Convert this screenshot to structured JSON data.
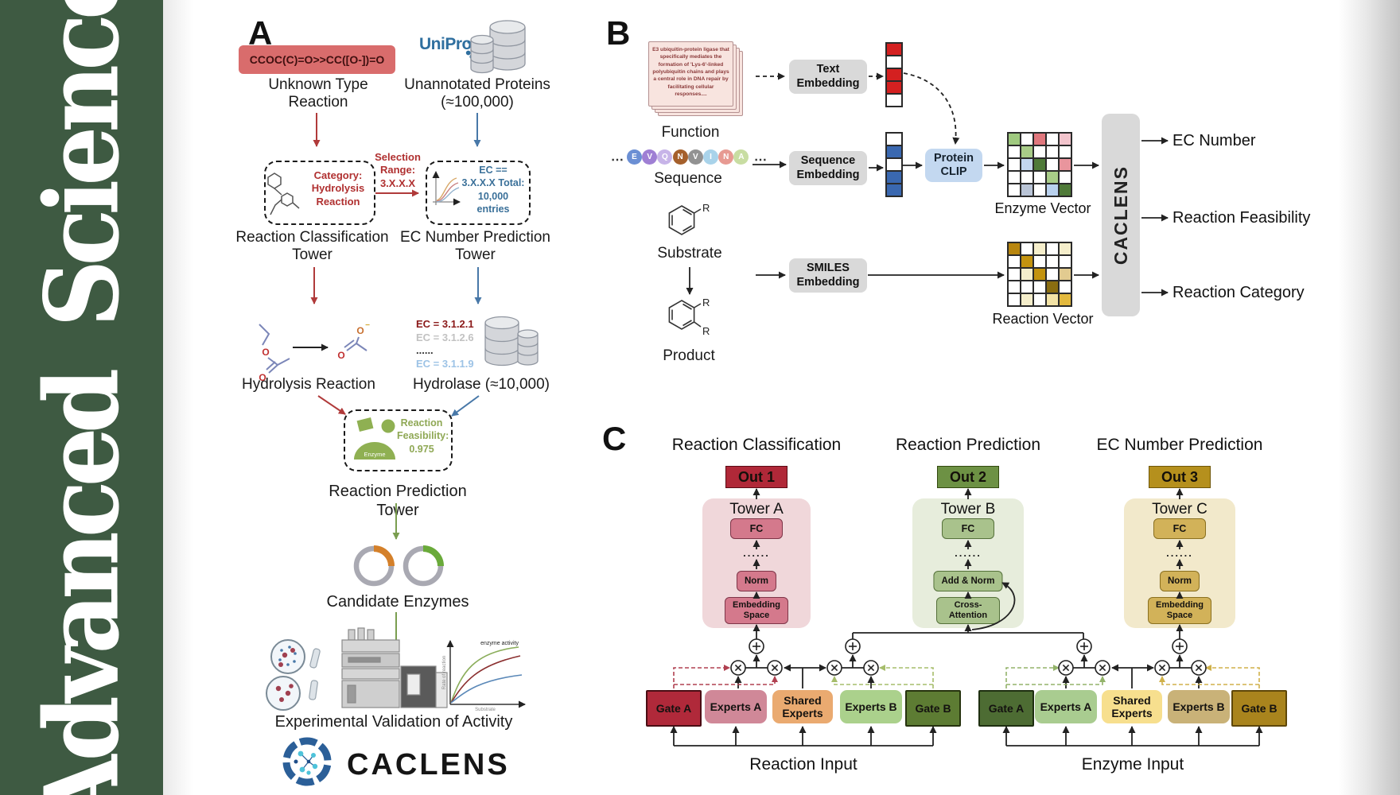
{
  "sidebar": {
    "journal": "Advanced Science",
    "bg_color": "#3e5a42"
  },
  "panel_a": {
    "label": "A",
    "smiles": "CCOC(C)=O>>CC([O-])=O",
    "unknown_reaction": "Unknown Type Reaction",
    "uniprot": "UniProt",
    "unannotated": "Unannotated Proteins (≈100,000)",
    "category": "Category: Hydrolysis Reaction",
    "selection": "Selection Range: 3.X.X.X",
    "ec_filter": "EC == 3.X.X.X Total: 10,000 entries",
    "tower_classification": "Reaction Classification Tower",
    "tower_ec": "EC Number Prediction Tower",
    "hydrolysis": "Hydrolysis Reaction",
    "ec_list": [
      {
        "text": "EC = 3.1.2.1",
        "color": "#8b1a1a"
      },
      {
        "text": "EC = 3.1.2.6",
        "color": "#c2c2c2"
      },
      {
        "text": "......",
        "color": "#333333"
      },
      {
        "text": "EC = 3.1.1.9",
        "color": "#9dc3e6"
      }
    ],
    "hydrolase": "Hydrolase (≈10,000)",
    "enzyme_badge": "Enzyme",
    "feasibility": "Reaction Feasibility: 0.975",
    "tower_prediction": "Reaction Prediction Tower",
    "candidates": "Candidate Enzymes",
    "validation": "Experimental Validation of Activity",
    "activity_chart": {
      "ylabel": "Rate of reaction",
      "xlabel": "Substrate",
      "annotation": "enzyme activity"
    },
    "atoms": {
      "o": "O",
      "minus": "−"
    },
    "brand": "CACLENS"
  },
  "panel_b": {
    "label": "B",
    "function_text": "E3 ubiquitin-protein ligase that specifically mediates the formation of 'Lys-6'-linked polyubiquitin chains and plays a central role in DNA repair by facilitating cellular responses....",
    "function": "Function",
    "ellipsis": "⋯",
    "sequence_residues": [
      {
        "letter": "E",
        "color": "#6b8fd4"
      },
      {
        "letter": "V",
        "color": "#9f7fd4"
      },
      {
        "letter": "Q",
        "color": "#c7b4e8"
      },
      {
        "letter": "N",
        "color": "#a5602c"
      },
      {
        "letter": "V",
        "color": "#929292"
      },
      {
        "letter": "I",
        "color": "#a9d3ea"
      },
      {
        "letter": "N",
        "color": "#e79a92"
      },
      {
        "letter": "A",
        "color": "#c8dda2"
      }
    ],
    "sequence": "Sequence",
    "substrate": "Substrate",
    "product": "Product",
    "r_group": "R",
    "text_embedding": "Text Embedding",
    "sequence_embedding": "Sequence Embedding",
    "smiles_embedding": "SMILES Embedding",
    "protein_clip": "Protein CLIP",
    "text_vector": [
      "#d42020",
      "#ffffff",
      "#d42020",
      "#d42020",
      "#ffffff"
    ],
    "sequence_vector": [
      "#ffffff",
      "#3a68b0",
      "#ffffff",
      "#3a68b0",
      "#3a68b0"
    ],
    "enzyme_matrix": [
      [
        "#9fc97f",
        "#ffffff",
        "#e0777d",
        "#ffffff",
        "#f2c4cc"
      ],
      [
        "#ffffff",
        "#a8cc88",
        "#ffffff",
        "#ffffff",
        "#ffffff"
      ],
      [
        "#ffffff",
        "#c3d6ee",
        "#4f7a38",
        "#ffffff",
        "#e9959d"
      ],
      [
        "#ffffff",
        "#ffffff",
        "#ffffff",
        "#a8cc88",
        "#ffffff"
      ],
      [
        "#ffffff",
        "#b9c4d6",
        "#ffffff",
        "#b9d1ee",
        "#4f7a38"
      ]
    ],
    "reaction_matrix": [
      [
        "#b8860f",
        "#ffffff",
        "#f5eecb",
        "#ffffff",
        "#f5eecb"
      ],
      [
        "#ffffff",
        "#c3930f",
        "#ffffff",
        "#ffffff",
        "#ffffff"
      ],
      [
        "#ffffff",
        "#f5eecb",
        "#c3930f",
        "#ffffff",
        "#e2cb90"
      ],
      [
        "#ffffff",
        "#ffffff",
        "#ffffff",
        "#8a6d10",
        "#ffffff"
      ],
      [
        "#ffffff",
        "#f5eecb",
        "#ffffff",
        "#f3e3a6",
        "#e3b93e"
      ]
    ],
    "enzyme_vector_label": "Enzyme Vector",
    "reaction_vector_label": "Reaction Vector",
    "caclens": "CACLENS",
    "outputs": [
      "EC Number",
      "Reaction Feasibility",
      "Reaction Category"
    ]
  },
  "panel_c": {
    "label": "C",
    "towers": [
      {
        "title": "Reaction Classification",
        "out": "Out 1",
        "tower": "Tower A",
        "layers": [
          "FC",
          "......",
          "Norm",
          "Embedding Space"
        ],
        "panel_bg": "#f0d7da",
        "box_bg": "#d4798c",
        "box_border": "#7e3548",
        "out_bg": "#b02838",
        "out_border": "#5a0a14"
      },
      {
        "title": "Reaction Prediction",
        "out": "Out 2",
        "tower": "Tower B",
        "layers": [
          "FC",
          "......",
          "Add & Norm",
          "Cross-Attention"
        ],
        "panel_bg": "#e7eddc",
        "box_bg": "#a9c28c",
        "box_border": "#55713a",
        "out_bg": "#6d9144",
        "out_border": "#33490f"
      },
      {
        "title": "EC Number Prediction",
        "out": "Out 3",
        "tower": "Tower C",
        "layers": [
          "FC",
          "......",
          "Norm",
          "Embedding Space"
        ],
        "panel_bg": "#f2e9cb",
        "box_bg": "#d2b259",
        "box_border": "#8a7020",
        "out_bg": "#b5901d",
        "out_border": "#6e5608"
      }
    ],
    "moe_groups": [
      {
        "input": "Reaction Input",
        "boxes": [
          {
            "label": "Gate A",
            "bg": "#b0293a",
            "shape": "rect",
            "border": "#4a0d14"
          },
          {
            "label": "Experts A",
            "bg": "#d08898",
            "shape": "round",
            "border": ""
          },
          {
            "label": "Shared Experts",
            "bg": "#eaaa70",
            "shape": "round",
            "border": ""
          },
          {
            "label": "Experts B",
            "bg": "#abd18c",
            "shape": "round",
            "border": ""
          },
          {
            "label": "Gate B",
            "bg": "#5d7c33",
            "shape": "rect",
            "border": "#26330e"
          }
        ]
      },
      {
        "input": "Enzyme Input",
        "boxes": [
          {
            "label": "Gate A",
            "bg": "#4d6c33",
            "shape": "rect",
            "border": "#1e2f10"
          },
          {
            "label": "Experts A",
            "bg": "#a9cc90",
            "shape": "round",
            "border": ""
          },
          {
            "label": "Shared Experts",
            "bg": "#f7df8e",
            "shape": "round",
            "border": ""
          },
          {
            "label": "Experts B",
            "bg": "#c9b278",
            "shape": "round",
            "border": ""
          },
          {
            "label": "Gate B",
            "bg": "#a9841d",
            "shape": "rect",
            "border": "#5e4708"
          }
        ]
      }
    ]
  }
}
